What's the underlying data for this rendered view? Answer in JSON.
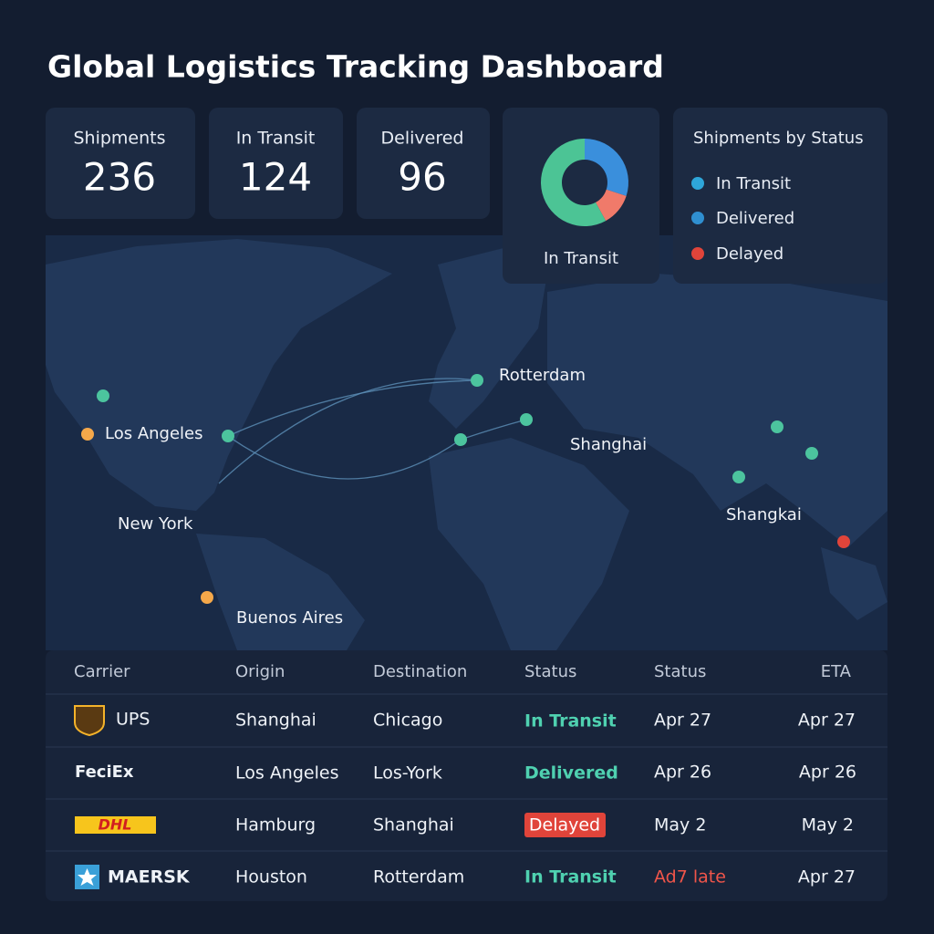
{
  "header": {
    "title": "Global Logistics Tracking Dashboard"
  },
  "kpis": [
    {
      "label": "Shipments",
      "value": "236"
    },
    {
      "label": "In Transit",
      "value": "124"
    },
    {
      "label": "Delivered",
      "value": "96"
    }
  ],
  "donut": {
    "type": "pie",
    "label": "In Transit",
    "values": [
      30,
      12,
      58
    ],
    "colors": [
      "#3a8fdc",
      "#f07a6a",
      "#4cc495"
    ]
  },
  "legend": {
    "title": "Shipments by Status",
    "items": [
      {
        "label": "In Transit",
        "color": "#2ea6d9"
      },
      {
        "label": "Delivered",
        "color": "#2f8fd0"
      },
      {
        "label": "Delayed",
        "color": "#e0443a"
      }
    ]
  },
  "map": {
    "cities": [
      "Rotterdam",
      "Los Angeles",
      "Shanghai",
      "New York",
      "Shangkai",
      "Buenos Aires"
    ]
  },
  "table": {
    "columns": [
      "Carrier",
      "Origin",
      "Destination",
      "Status",
      "Status",
      "ETA"
    ],
    "rows": [
      [
        "UPS",
        "Shanghai",
        "Chicago",
        "In Transit",
        "Apr 27",
        "Apr 27"
      ],
      [
        "FeciEx",
        "Los Angeles",
        "Los-York",
        "Delivered",
        "Apr 26",
        "Apr 26"
      ],
      [
        "DHL",
        "Hamburg",
        "Shanghai",
        "Delayed",
        "May 2",
        "May 2"
      ],
      [
        "MAERSK",
        "Houston",
        "Rotterdam",
        "In Transit",
        "Ad7 late",
        "Apr 27"
      ]
    ]
  }
}
